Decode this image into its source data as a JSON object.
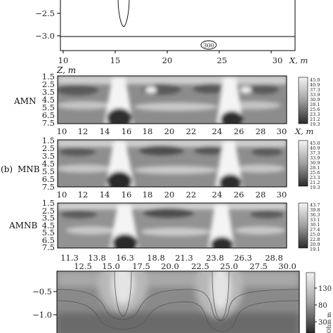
{
  "top_panel": {
    "y_ticks": [
      "−2.5",
      "−3.0"
    ],
    "x_ticks": [
      "10",
      "15",
      "20",
      "25",
      "30"
    ],
    "x_axis_label": "X, m",
    "marker_label": "300"
  },
  "panel_a": {
    "z_label": "Z, m",
    "row_label": "AMN",
    "y_ticks": [
      "1.5",
      "2.5",
      "3.5",
      "4.5",
      "5.5",
      "6.5",
      "7.5"
    ],
    "x_ticks": [
      "10",
      "12",
      "14",
      "16",
      "18",
      "20",
      "22",
      "24",
      "26",
      "28",
      "30"
    ],
    "x_axis_label": "X, m",
    "colorbar": [
      "45.0",
      "40.9",
      "37.3",
      "33.9",
      "30.9",
      "28.1",
      "25.6",
      "23.3",
      "21.2",
      "19.3"
    ]
  },
  "panel_b": {
    "tag": "(b)",
    "row_label": "MNB",
    "y_ticks": [
      "1.5",
      "2.5",
      "3.5",
      "4.5",
      "5.5",
      "6.5",
      "7.5"
    ],
    "x_ticks": [
      "10",
      "12",
      "14",
      "16",
      "18",
      "20",
      "22",
      "24",
      "26",
      "28",
      "30"
    ],
    "colorbar": [
      "45.0",
      "40.9",
      "37.3",
      "33.9",
      "30.9",
      "28.1",
      "25.6",
      "23.3",
      "21.2",
      "19.3"
    ]
  },
  "panel_c": {
    "row_label": "AMNB",
    "y_ticks": [
      "1.5",
      "2.5",
      "3.5",
      "4.5",
      "5.5",
      "6.5",
      "7.5"
    ],
    "x_ticks_top": [
      "11.3",
      "13.8",
      "16.3",
      "18.8",
      "21.3",
      "23.8",
      "26.3",
      "28.8"
    ],
    "x_ticks_bottom": [
      "12.5",
      "15.0",
      "17.5",
      "20.0",
      "22.5",
      "25.0",
      "27.5",
      "30.0"
    ],
    "colorbar": [
      "43.7",
      "39.8",
      "36.3",
      "33.1",
      "30.1",
      "27.4",
      "25.0",
      "22.8",
      "20.9",
      "19.1"
    ]
  },
  "bottom_panel": {
    "y_ticks": [
      "−0.5",
      "−1.0"
    ],
    "colorbar_ticks": [
      "130",
      "80",
      "30"
    ],
    "colorbar_unit": "Ohm m"
  },
  "colors": {
    "light": "#f2f2f2",
    "mid": "#a8a8a8",
    "dark": "#3c3c3c"
  }
}
